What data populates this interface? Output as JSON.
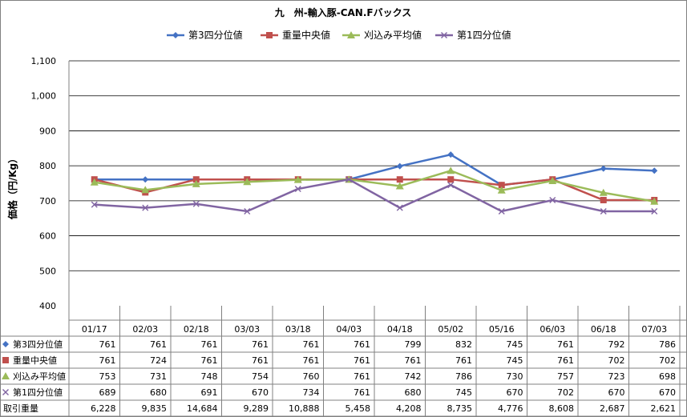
{
  "chart_data": {
    "type": "line",
    "title": "九　州-輸入豚-CAN.Fバックス",
    "ylabel": "価格（円/Kg）",
    "xlabel": "",
    "ylim": [
      400,
      1100
    ],
    "yticks": [
      400,
      500,
      600,
      700,
      800,
      900,
      1000,
      1100
    ],
    "ytick_labels": [
      "400",
      "500",
      "600",
      "700",
      "800",
      "900",
      "1,000",
      "1,100"
    ],
    "grid": "horizontal",
    "legend_position": "top",
    "categories": [
      "01/17",
      "02/03",
      "02/18",
      "03/03",
      "03/18",
      "04/03",
      "04/18",
      "05/02",
      "05/16",
      "06/03",
      "06/18",
      "07/03"
    ],
    "series": [
      {
        "name": "第3四分位値",
        "color": "#4472C4",
        "marker": "diamond",
        "values": [
          761,
          761,
          761,
          761,
          761,
          761,
          799,
          832,
          745,
          761,
          792,
          786
        ],
        "labels": [
          "761",
          "761",
          "761",
          "761",
          "761",
          "761",
          "799",
          "832",
          "745",
          "761",
          "792",
          "786"
        ]
      },
      {
        "name": "重量中央値",
        "color": "#C0504D",
        "marker": "square",
        "values": [
          761,
          724,
          761,
          761,
          761,
          761,
          761,
          761,
          745,
          761,
          702,
          702
        ],
        "labels": [
          "761",
          "724",
          "761",
          "761",
          "761",
          "761",
          "761",
          "761",
          "745",
          "761",
          "702",
          "702"
        ]
      },
      {
        "name": "刈込み平均値",
        "color": "#9BBB59",
        "marker": "triangle",
        "values": [
          753,
          731,
          748,
          754,
          760,
          761,
          742,
          786,
          730,
          757,
          723,
          698
        ],
        "labels": [
          "753",
          "731",
          "748",
          "754",
          "760",
          "761",
          "742",
          "786",
          "730",
          "757",
          "723",
          "698"
        ]
      },
      {
        "name": "第1四分位値",
        "color": "#8064A2",
        "marker": "x",
        "values": [
          689,
          680,
          691,
          670,
          734,
          761,
          680,
          745,
          670,
          702,
          670,
          670
        ],
        "labels": [
          "689",
          "680",
          "691",
          "670",
          "734",
          "761",
          "680",
          "745",
          "670",
          "702",
          "670",
          "670"
        ]
      }
    ],
    "extra_rows": [
      {
        "name": "取引重量",
        "values": [
          6228,
          9835,
          14684,
          9289,
          10888,
          5458,
          4208,
          8735,
          4776,
          8608,
          2687,
          2621
        ],
        "labels": [
          "6,228",
          "9,835",
          "14,684",
          "9,289",
          "10,888",
          "5,458",
          "4,208",
          "8,735",
          "4,776",
          "8,608",
          "2,687",
          "2,621"
        ]
      }
    ]
  }
}
